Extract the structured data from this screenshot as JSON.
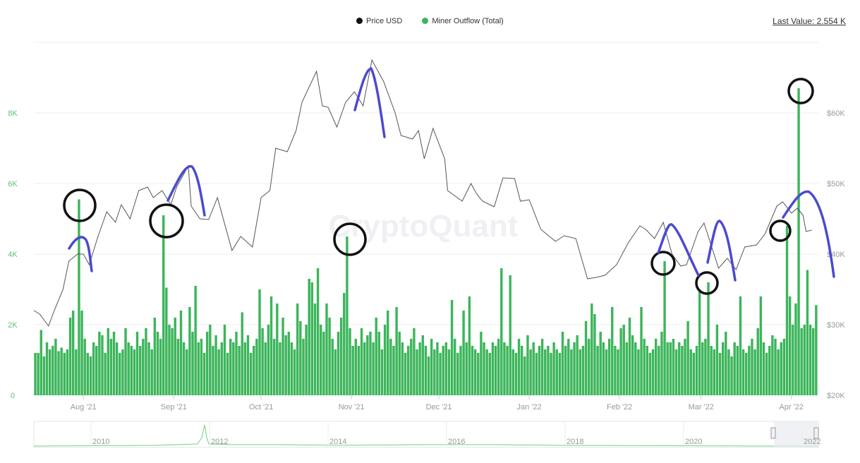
{
  "legend": [
    {
      "label": "Price USD",
      "color": "#111111"
    },
    {
      "label": "Miner Outflow (Total)",
      "color": "#3cb55a"
    }
  ],
  "last_value": "Last Value: 2.554 K",
  "watermark": "CryptoQuant",
  "chart_data": {
    "type": "bar+line",
    "x_start": "2021-07-15",
    "x_ticks": [
      "Aug '21",
      "Sep '21",
      "Oct '21",
      "Nov '21",
      "Dec '21",
      "Jan '22",
      "Feb '22",
      "Mar '22",
      "Apr '22"
    ],
    "x_tick_dates": [
      "2021-08-01",
      "2021-09-01",
      "2021-10-01",
      "2021-11-01",
      "2021-12-01",
      "2022-01-01",
      "2022-02-01",
      "2022-03-01",
      "2022-04-01"
    ],
    "left_axis": {
      "ticks": [
        "0",
        "2K",
        "4K",
        "6K",
        "8K"
      ],
      "tick_values": [
        0,
        2000,
        4000,
        6000,
        8000
      ],
      "range": [
        0,
        10000
      ],
      "color": "#5cc27a"
    },
    "right_axis": {
      "ticks": [
        "$20K",
        "$30K",
        "$40K",
        "$50K",
        "$60K"
      ],
      "tick_values": [
        20000,
        30000,
        40000,
        50000,
        60000
      ],
      "range": [
        20000,
        70000
      ]
    },
    "grid": true,
    "series": [
      {
        "name": "Miner Outflow (Total)",
        "type": "bar",
        "axis": "left",
        "unit": "K",
        "color": "#3cb55a",
        "daily_values": [
          1.2,
          1.2,
          1.85,
          1.1,
          1.5,
          1.3,
          1.4,
          1.6,
          1.25,
          1.35,
          1.2,
          1.3,
          2.2,
          2.4,
          1.3,
          5.55,
          2.4,
          1.6,
          1.2,
          1.1,
          1.5,
          1.4,
          1.8,
          1.7,
          1.2,
          1.9,
          1.6,
          1.8,
          1.5,
          1.2,
          1.3,
          1.9,
          1.5,
          1.4,
          1.3,
          1.8,
          1.4,
          1.6,
          1.9,
          1.5,
          1.3,
          2.2,
          1.8,
          1.6,
          5.1,
          3.05,
          2.0,
          1.9,
          2.2,
          1.6,
          2.4,
          1.5,
          1.3,
          2.5,
          1.8,
          3.1,
          1.5,
          1.6,
          1.2,
          1.8,
          2.0,
          1.4,
          1.7,
          1.3,
          1.5,
          2.0,
          1.2,
          1.6,
          1.5,
          1.8,
          1.4,
          2.35,
          1.5,
          1.7,
          1.2,
          1.4,
          1.6,
          3.0,
          1.9,
          1.5,
          2.0,
          2.8,
          1.6,
          2.6,
          1.5,
          2.2,
          1.7,
          1.8,
          1.5,
          1.3,
          2.6,
          2.1,
          1.6,
          2.0,
          3.3,
          3.2,
          2.6,
          3.6,
          2.0,
          1.8,
          2.6,
          2.2,
          1.6,
          1.3,
          1.8,
          2.2,
          2.9,
          4.5,
          1.9,
          1.4,
          1.6,
          1.4,
          1.9,
          1.5,
          1.7,
          1.8,
          1.5,
          2.2,
          1.8,
          1.3,
          2.0,
          2.4,
          1.6,
          1.4,
          2.5,
          1.8,
          1.5,
          1.2,
          1.4,
          1.6,
          1.9,
          1.3,
          1.5,
          1.7,
          1.4,
          1.1,
          1.6,
          1.3,
          1.5,
          1.2,
          1.4,
          1.5,
          1.3,
          2.7,
          1.6,
          1.2,
          1.4,
          2.4,
          1.5,
          2.8,
          1.4,
          1.3,
          1.2,
          1.8,
          1.5,
          1.3,
          1.2,
          1.5,
          1.4,
          1.6,
          3.6,
          1.5,
          1.4,
          3.4,
          1.3,
          1.2,
          1.6,
          1.4,
          1.1,
          1.7,
          1.3,
          1.5,
          1.2,
          1.4,
          1.6,
          1.3,
          1.4,
          1.2,
          1.5,
          1.3,
          1.2,
          1.8,
          1.4,
          1.6,
          1.3,
          1.5,
          1.7,
          1.3,
          1.4,
          2.1,
          1.6,
          2.6,
          2.3,
          1.4,
          1.8,
          1.5,
          1.3,
          1.6,
          2.5,
          1.4,
          1.3,
          1.9,
          2.0,
          1.5,
          2.2,
          1.7,
          1.5,
          1.3,
          2.5,
          1.6,
          1.4,
          1.2,
          1.3,
          1.6,
          1.4,
          1.8,
          3.8,
          1.5,
          1.5,
          1.6,
          1.3,
          1.5,
          1.4,
          1.6,
          2.1,
          1.3,
          1.2,
          1.4,
          3.0,
          1.5,
          1.6,
          3.2,
          1.4,
          1.3,
          2.0,
          1.2,
          1.5,
          1.8,
          1.3,
          1.1,
          1.5,
          1.4,
          2.8,
          1.3,
          1.2,
          1.4,
          1.6,
          1.3,
          1.9,
          2.8,
          1.5,
          1.2,
          1.4,
          1.7,
          1.6,
          1.3,
          1.5,
          1.6,
          4.8,
          2.8,
          2.0,
          2.6,
          8.7,
          1.9,
          2.0,
          3.55,
          2.0,
          1.9,
          2.554
        ]
      },
      {
        "name": "Price USD",
        "type": "line",
        "axis": "right",
        "unit": "K USD",
        "color": "#555555",
        "points": [
          [
            "2021-07-15",
            32
          ],
          [
            "2021-07-17",
            31.5
          ],
          [
            "2021-07-20",
            29.8
          ],
          [
            "2021-07-22",
            32
          ],
          [
            "2021-07-25",
            35
          ],
          [
            "2021-07-27",
            39
          ],
          [
            "2021-07-30",
            40
          ],
          [
            "2021-08-01",
            40
          ],
          [
            "2021-08-03",
            38.5
          ],
          [
            "2021-08-06",
            42.5
          ],
          [
            "2021-08-09",
            46
          ],
          [
            "2021-08-12",
            44.5
          ],
          [
            "2021-08-14",
            47
          ],
          [
            "2021-08-17",
            45
          ],
          [
            "2021-08-20",
            49
          ],
          [
            "2021-08-23",
            49.5
          ],
          [
            "2021-08-25",
            48
          ],
          [
            "2021-08-28",
            49
          ],
          [
            "2021-08-31",
            47
          ],
          [
            "2021-09-02",
            49.5
          ],
          [
            "2021-09-06",
            52.5
          ],
          [
            "2021-09-07",
            46.8
          ],
          [
            "2021-09-10",
            45
          ],
          [
            "2021-09-13",
            44.9
          ],
          [
            "2021-09-16",
            48
          ],
          [
            "2021-09-21",
            40.5
          ],
          [
            "2021-09-24",
            42.5
          ],
          [
            "2021-09-28",
            41
          ],
          [
            "2021-10-01",
            48
          ],
          [
            "2021-10-04",
            49
          ],
          [
            "2021-10-06",
            55
          ],
          [
            "2021-10-10",
            54.5
          ],
          [
            "2021-10-13",
            57.5
          ],
          [
            "2021-10-15",
            61.5
          ],
          [
            "2021-10-20",
            65.9
          ],
          [
            "2021-10-22",
            61
          ],
          [
            "2021-10-24",
            60.8
          ],
          [
            "2021-10-27",
            58
          ],
          [
            "2021-10-30",
            61.5
          ],
          [
            "2021-11-02",
            63
          ],
          [
            "2021-11-05",
            61
          ],
          [
            "2021-11-08",
            67.5
          ],
          [
            "2021-11-10",
            66
          ],
          [
            "2021-11-12",
            64.5
          ],
          [
            "2021-11-16",
            60
          ],
          [
            "2021-11-18",
            56.8
          ],
          [
            "2021-11-22",
            56.3
          ],
          [
            "2021-11-24",
            57.5
          ],
          [
            "2021-11-26",
            53.5
          ],
          [
            "2021-11-29",
            57.8
          ],
          [
            "2021-12-03",
            53.5
          ],
          [
            "2021-12-04",
            49
          ],
          [
            "2021-12-09",
            47.5
          ],
          [
            "2021-12-12",
            50
          ],
          [
            "2021-12-14",
            48.5
          ],
          [
            "2021-12-16",
            47.5
          ],
          [
            "2021-12-20",
            46.7
          ],
          [
            "2021-12-23",
            50.8
          ],
          [
            "2021-12-27",
            50.7
          ],
          [
            "2021-12-29",
            47.5
          ],
          [
            "2022-01-01",
            47.7
          ],
          [
            "2022-01-05",
            43.5
          ],
          [
            "2022-01-10",
            41.8
          ],
          [
            "2022-01-13",
            42.6
          ],
          [
            "2022-01-17",
            42.2
          ],
          [
            "2022-01-21",
            36.5
          ],
          [
            "2022-01-24",
            36.7
          ],
          [
            "2022-01-27",
            37
          ],
          [
            "2022-01-31",
            38.5
          ],
          [
            "2022-02-04",
            41.6
          ],
          [
            "2022-02-08",
            44
          ],
          [
            "2022-02-10",
            43.5
          ],
          [
            "2022-02-13",
            42.2
          ],
          [
            "2022-02-16",
            44.5
          ],
          [
            "2022-02-19",
            40
          ],
          [
            "2022-02-22",
            38.3
          ],
          [
            "2022-02-24",
            38.5
          ],
          [
            "2022-02-28",
            43.2
          ],
          [
            "2022-03-02",
            44.4
          ],
          [
            "2022-03-07",
            38
          ],
          [
            "2022-03-10",
            39.4
          ],
          [
            "2022-03-13",
            37.8
          ],
          [
            "2022-03-16",
            41
          ],
          [
            "2022-03-20",
            41.3
          ],
          [
            "2022-03-23",
            42.9
          ],
          [
            "2022-03-27",
            46.8
          ],
          [
            "2022-03-29",
            47.4
          ],
          [
            "2022-04-01",
            45.8
          ],
          [
            "2022-04-03",
            46.5
          ],
          [
            "2022-04-05",
            45.5
          ],
          [
            "2022-04-06",
            43.2
          ],
          [
            "2022-04-08",
            43.4
          ]
        ]
      }
    ],
    "navigator": {
      "year_ticks": [
        "2010",
        "2012",
        "2014",
        "2016",
        "2018",
        "2020",
        "2022"
      ]
    }
  }
}
